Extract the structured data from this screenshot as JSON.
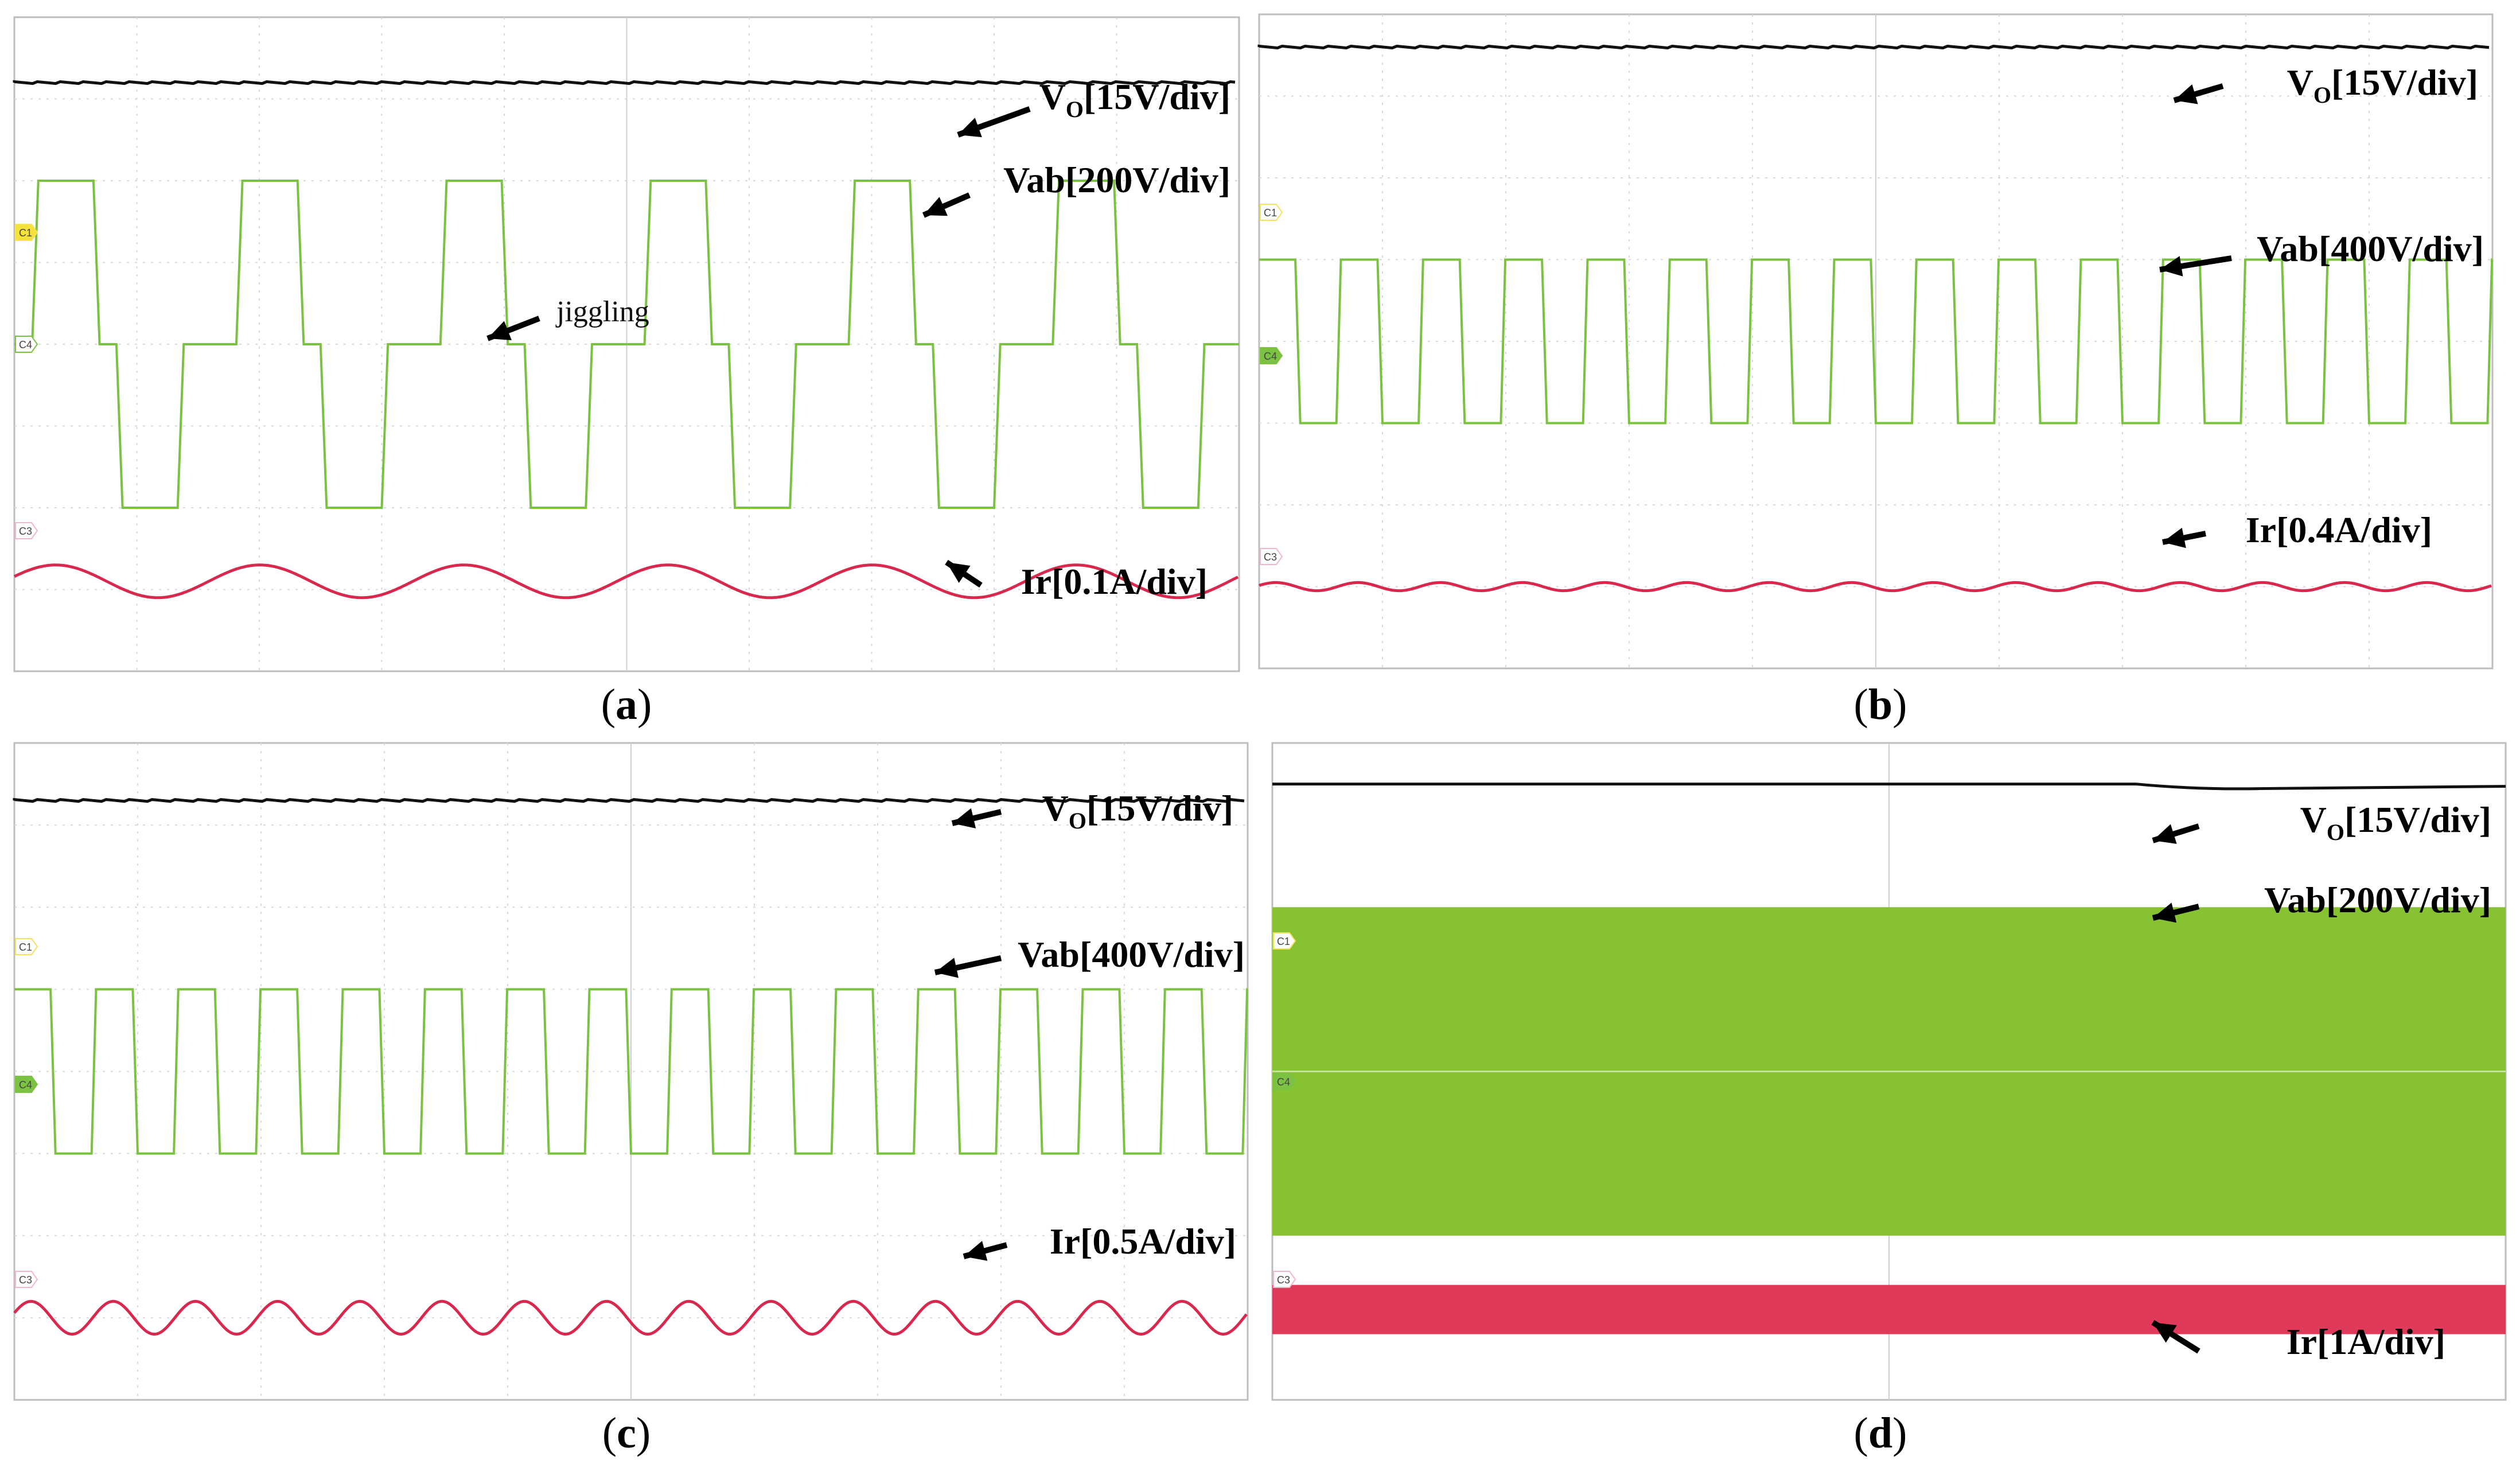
{
  "figure": {
    "panels": [
      {
        "id": "a",
        "caption_open": "(",
        "caption_letter": "a",
        "caption_close": ")",
        "labels": {
          "vo_main": "V",
          "vo_sub": "O",
          "vo_tail": "[15V/div]",
          "vab": "Vab[200V/div]",
          "ir": "Ir[0.1A/div]",
          "annotation": "jiggling"
        },
        "markers": {
          "c1": "C1",
          "c4": "C4",
          "c3": "C3"
        }
      },
      {
        "id": "b",
        "caption_open": "(",
        "caption_letter": "b",
        "caption_close": ")",
        "labels": {
          "vo_main": "V",
          "vo_sub": "O",
          "vo_tail": "[15V/div]",
          "vab": "Vab[400V/div]",
          "ir": "Ir[0.4A/div]"
        },
        "markers": {
          "c1": "C1",
          "c4": "C4",
          "c3": "C3"
        }
      },
      {
        "id": "c",
        "caption_open": "(",
        "caption_letter": "c",
        "caption_close": ")",
        "labels": {
          "vo_main": "V",
          "vo_sub": "O",
          "vo_tail": "[15V/div]",
          "vab": "Vab[400V/div]",
          "ir": "Ir[0.5A/div]"
        },
        "markers": {
          "c1": "C1",
          "c4": "C4",
          "c3": "C3"
        }
      },
      {
        "id": "d",
        "caption_open": "(",
        "caption_letter": "d",
        "caption_close": ")",
        "labels": {
          "vo_main": "V",
          "vo_sub": "O",
          "vo_tail": "[15V/div]",
          "vab": "Vab[200V/div]",
          "ir": "Ir[1A/div]"
        },
        "markers": {
          "c1": "C1",
          "c4": "C4",
          "c3": "C3"
        }
      }
    ]
  },
  "chart_data": [
    {
      "type": "line",
      "panel": "a",
      "grid": true,
      "xlim": [
        0,
        10
      ],
      "ylim": [
        -4,
        4
      ],
      "series": [
        {
          "name": "VO[15V/div]",
          "color": "#111111",
          "shape": "dc",
          "level": 3.2
        },
        {
          "name": "Vab[200V/div]",
          "color": "#7cc242",
          "shape": "stepped-square",
          "cycles": 6,
          "high": 2.0,
          "mid": 0.0,
          "low": -2.0
        },
        {
          "name": "Ir[0.1A/div]",
          "color": "#d8284e",
          "shape": "sine",
          "cycles": 6,
          "offset": -2.9,
          "amplitude": 0.2
        }
      ]
    },
    {
      "type": "line",
      "panel": "b",
      "grid": true,
      "xlim": [
        0,
        10
      ],
      "ylim": [
        -4,
        4
      ],
      "series": [
        {
          "name": "VO[15V/div]",
          "color": "#111111",
          "shape": "dc",
          "level": 3.6
        },
        {
          "name": "Vab[400V/div]",
          "color": "#7cc242",
          "shape": "square",
          "cycles": 15,
          "high": 1.0,
          "low": -1.0
        },
        {
          "name": "Ir[0.4A/div]",
          "color": "#d8284e",
          "shape": "sine",
          "cycles": 15,
          "offset": -3.0,
          "amplitude": 0.05
        }
      ]
    },
    {
      "type": "line",
      "panel": "c",
      "grid": true,
      "xlim": [
        0,
        10
      ],
      "ylim": [
        -4,
        4
      ],
      "series": [
        {
          "name": "VO[15V/div]",
          "color": "#111111",
          "shape": "dc",
          "level": 3.3
        },
        {
          "name": "Vab[400V/div]",
          "color": "#7cc242",
          "shape": "square",
          "cycles": 15,
          "high": 1.0,
          "low": -1.0
        },
        {
          "name": "Ir[0.5A/div]",
          "color": "#d8284e",
          "shape": "sine",
          "cycles": 15,
          "offset": -3.0,
          "amplitude": 0.2
        }
      ]
    },
    {
      "type": "area",
      "panel": "d",
      "grid": false,
      "xlim": [
        0,
        10
      ],
      "ylim": [
        -4,
        4
      ],
      "series": [
        {
          "name": "VO[15V/div]",
          "color": "#111111",
          "shape": "dc",
          "level": 3.5
        },
        {
          "name": "Vab[200V/div]",
          "color": "#86c232",
          "shape": "band",
          "high": 2.0,
          "low": -2.0
        },
        {
          "name": "Ir[1A/div]",
          "color": "#e03a5a",
          "shape": "band",
          "high": -2.6,
          "low": -3.2
        }
      ]
    }
  ]
}
